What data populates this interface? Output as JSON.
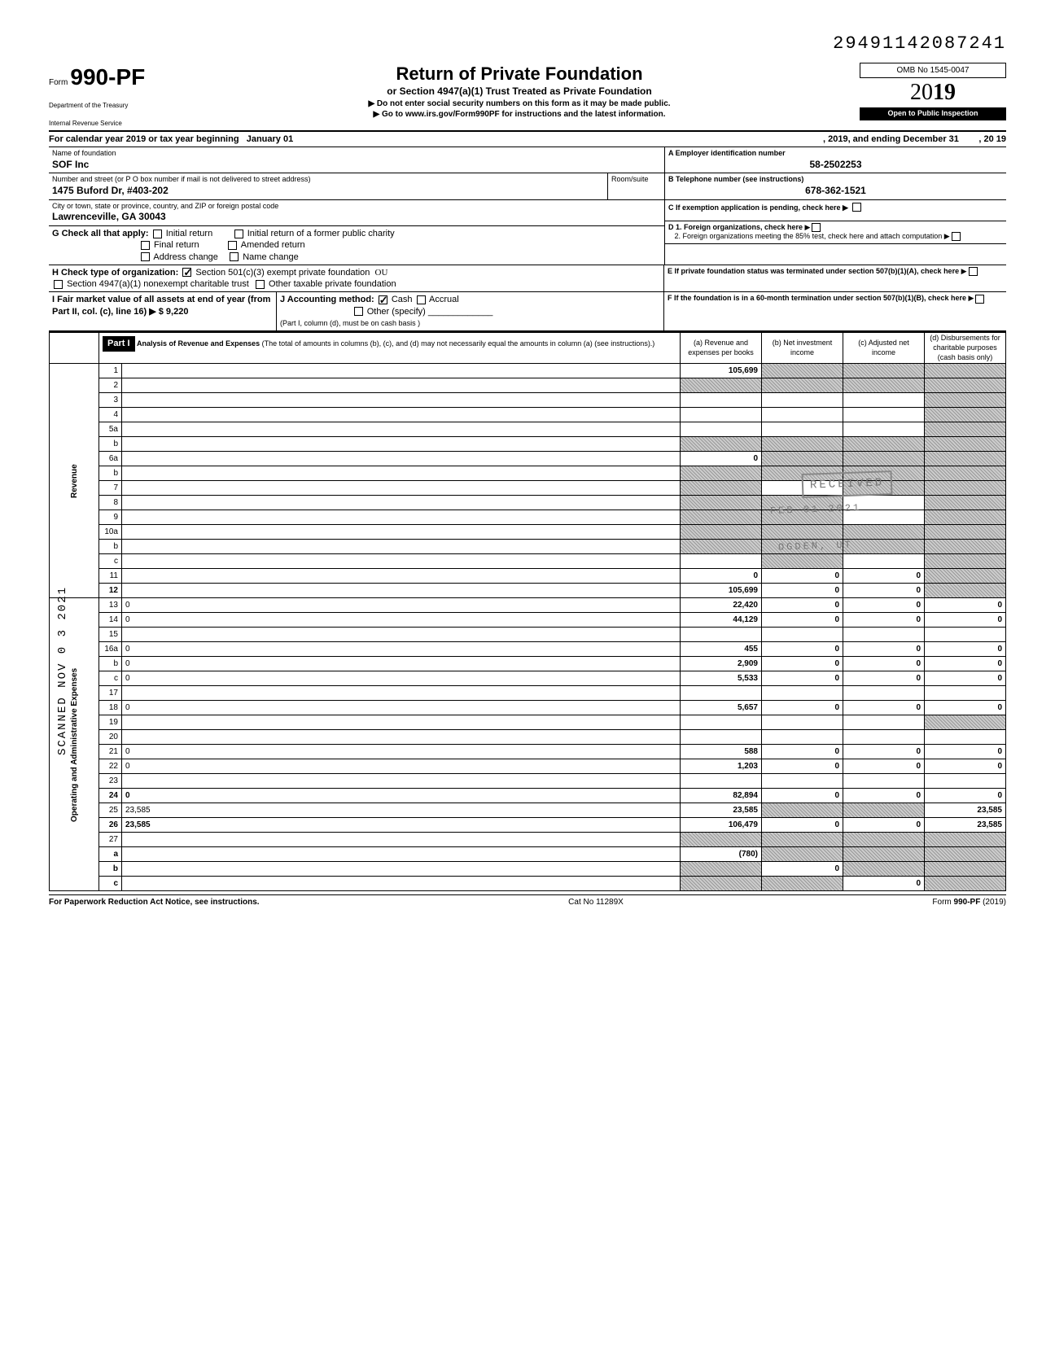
{
  "doc_id": "29491142087241",
  "form": {
    "prefix": "Form",
    "number": "990-PF",
    "dept1": "Department of the Treasury",
    "dept2": "Internal Revenue Service",
    "title": "Return of Private Foundation",
    "subtitle": "or Section 4947(a)(1) Trust Treated as Private Foundation",
    "instr1": "▶ Do not enter social security numbers on this form as it may be made public.",
    "instr2": "▶ Go to www.irs.gov/Form990PF for instructions and the latest information.",
    "omb": "OMB No 1545-0047",
    "year": "2019",
    "inspect": "Open to Public Inspection"
  },
  "cal": {
    "line": "For calendar year 2019 or tax year beginning",
    "begin": "January 01",
    "mid": ", 2019, and ending",
    "end": "December 31",
    "endyr": ", 20 19"
  },
  "name": {
    "lbl": "Name of foundation",
    "val": "SOF Inc"
  },
  "addr": {
    "lbl": "Number and street (or P O box number if mail is not delivered to street address)",
    "val": "1475 Buford Dr, #403-202",
    "room_lbl": "Room/suite"
  },
  "city": {
    "lbl": "City or town, state or province, country, and ZIP or foreign postal code",
    "val": "Lawrenceville, GA 30043"
  },
  "ein": {
    "lbl": "A  Employer identification number",
    "val": "58-2502253"
  },
  "tel": {
    "lbl": "B  Telephone number (see instructions)",
    "val": "678-362-1521"
  },
  "c_lbl": "C  If exemption application is pending, check here ▶",
  "d1_lbl": "D  1. Foreign organizations, check here",
  "d2_lbl": "2. Foreign organizations meeting the 85% test, check here and attach computation",
  "e_lbl": "E  If private foundation status was terminated under section 507(b)(1)(A), check here",
  "f_lbl": "F  If the foundation is in a 60-month termination under section 507(b)(1)(B), check here",
  "g": {
    "lbl": "G  Check all that apply:",
    "opts": [
      "Initial return",
      "Initial return of a former public charity",
      "Final return",
      "Amended return",
      "Address change",
      "Name change"
    ]
  },
  "h": {
    "lbl": "H  Check type of organization:",
    "opt1": "Section 501(c)(3) exempt private foundation",
    "opt2": "Section 4947(a)(1) nonexempt charitable trust",
    "opt3": "Other taxable private foundation"
  },
  "i": {
    "lbl": "I   Fair market value of all assets at end of year (from Part II, col. (c), line 16) ▶  $",
    "val": "9,220"
  },
  "j": {
    "lbl": "J  Accounting method:",
    "opt1": "Cash",
    "opt2": "Accrual",
    "opt3": "Other (specify)",
    "note": "(Part I, column (d), must be on cash basis )"
  },
  "part1": {
    "hdr": "Part I",
    "title": "Analysis of Revenue and Expenses",
    "note": "(The total of amounts in columns (b), (c), and (d) may not necessarily equal the amounts in column (a) (see instructions).)",
    "cols": {
      "a": "(a) Revenue and expenses per books",
      "b": "(b) Net investment income",
      "c": "(c) Adjusted net income",
      "d": "(d) Disbursements for charitable purposes (cash basis only)"
    }
  },
  "rev_lbl": "Revenue",
  "opex_lbl": "Operating and Administrative Expenses",
  "lines": [
    {
      "n": "1",
      "d": "",
      "a": "105,699",
      "b": "",
      "c": "",
      "sh_b": true,
      "sh_c": true,
      "sh_d": true
    },
    {
      "n": "2",
      "d": "",
      "a": "",
      "b": "",
      "c": "",
      "sh_a": true,
      "sh_b": true,
      "sh_c": true,
      "sh_d": true
    },
    {
      "n": "3",
      "d": "",
      "a": "",
      "b": "",
      "c": "",
      "sh_d": true
    },
    {
      "n": "4",
      "d": "",
      "a": "",
      "b": "",
      "c": "",
      "sh_d": true
    },
    {
      "n": "5a",
      "d": "",
      "a": "",
      "b": "",
      "c": "",
      "sh_d": true
    },
    {
      "n": "b",
      "d": "",
      "a": "",
      "b": "",
      "c": "",
      "sh_a": true,
      "sh_b": true,
      "sh_c": true,
      "sh_d": true
    },
    {
      "n": "6a",
      "d": "",
      "a": "0",
      "b": "",
      "c": "",
      "sh_b": true,
      "sh_c": true,
      "sh_d": true
    },
    {
      "n": "b",
      "d": "",
      "a": "",
      "b": "",
      "c": "",
      "sh_a": true,
      "sh_b": true,
      "sh_c": true,
      "sh_d": true
    },
    {
      "n": "7",
      "d": "",
      "a": "",
      "b": "",
      "c": "",
      "sh_a": true,
      "sh_c": true,
      "sh_d": true
    },
    {
      "n": "8",
      "d": "",
      "a": "",
      "b": "",
      "c": "",
      "sh_a": true,
      "sh_b": true,
      "sh_d": true
    },
    {
      "n": "9",
      "d": "",
      "a": "",
      "b": "",
      "c": "",
      "sh_a": true,
      "sh_b": true,
      "sh_d": true
    },
    {
      "n": "10a",
      "d": "",
      "a": "",
      "b": "",
      "c": "",
      "sh_a": true,
      "sh_b": true,
      "sh_c": true,
      "sh_d": true
    },
    {
      "n": "b",
      "d": "",
      "a": "",
      "b": "",
      "c": "",
      "sh_a": true,
      "sh_b": true,
      "sh_c": true,
      "sh_d": true
    },
    {
      "n": "c",
      "d": "",
      "a": "",
      "b": "",
      "c": "",
      "sh_b": true,
      "sh_d": true
    },
    {
      "n": "11",
      "d": "",
      "a": "0",
      "b": "0",
      "c": "0",
      "sh_d": true
    },
    {
      "n": "12",
      "d": "",
      "a": "105,699",
      "b": "0",
      "c": "0",
      "bold": true,
      "sh_d": true
    },
    {
      "n": "13",
      "d": "0",
      "a": "22,420",
      "b": "0",
      "c": "0"
    },
    {
      "n": "14",
      "d": "0",
      "a": "44,129",
      "b": "0",
      "c": "0"
    },
    {
      "n": "15",
      "d": "",
      "a": "",
      "b": "",
      "c": ""
    },
    {
      "n": "16a",
      "d": "0",
      "a": "455",
      "b": "0",
      "c": "0"
    },
    {
      "n": "b",
      "d": "0",
      "a": "2,909",
      "b": "0",
      "c": "0"
    },
    {
      "n": "c",
      "d": "0",
      "a": "5,533",
      "b": "0",
      "c": "0"
    },
    {
      "n": "17",
      "d": "",
      "a": "",
      "b": "",
      "c": ""
    },
    {
      "n": "18",
      "d": "0",
      "a": "5,657",
      "b": "0",
      "c": "0"
    },
    {
      "n": "19",
      "d": "",
      "a": "",
      "b": "",
      "c": "",
      "sh_d": true
    },
    {
      "n": "20",
      "d": "",
      "a": "",
      "b": "",
      "c": ""
    },
    {
      "n": "21",
      "d": "0",
      "a": "588",
      "b": "0",
      "c": "0"
    },
    {
      "n": "22",
      "d": "0",
      "a": "1,203",
      "b": "0",
      "c": "0"
    },
    {
      "n": "23",
      "d": "",
      "a": "",
      "b": "",
      "c": ""
    },
    {
      "n": "24",
      "d": "0",
      "a": "82,894",
      "b": "0",
      "c": "0",
      "bold": true
    },
    {
      "n": "25",
      "d": "23,585",
      "a": "23,585",
      "b": "",
      "c": "",
      "sh_b": true,
      "sh_c": true
    },
    {
      "n": "26",
      "d": "23,585",
      "a": "106,479",
      "b": "0",
      "c": "0",
      "bold": true
    },
    {
      "n": "27",
      "d": "",
      "a": "",
      "b": "",
      "c": "",
      "sh_a": true,
      "sh_b": true,
      "sh_c": true,
      "sh_d": true
    },
    {
      "n": "a",
      "d": "",
      "a": "(780)",
      "b": "",
      "c": "",
      "bold": true,
      "sh_b": true,
      "sh_c": true,
      "sh_d": true
    },
    {
      "n": "b",
      "d": "",
      "a": "",
      "b": "0",
      "c": "",
      "bold": true,
      "sh_a": true,
      "sh_c": true,
      "sh_d": true
    },
    {
      "n": "c",
      "d": "",
      "a": "",
      "b": "",
      "c": "0",
      "bold": true,
      "sh_a": true,
      "sh_b": true,
      "sh_d": true
    }
  ],
  "footer": {
    "left": "For Paperwork Reduction Act Notice, see instructions.",
    "mid": "Cat No 11289X",
    "right": "Form 990-PF (2019)"
  },
  "stamps": {
    "received": "RECEIVED",
    "date": "FEB 01 2021",
    "ogden": "OGDEN, UT"
  },
  "margin": "SCANNED NOV 0 3 2021"
}
